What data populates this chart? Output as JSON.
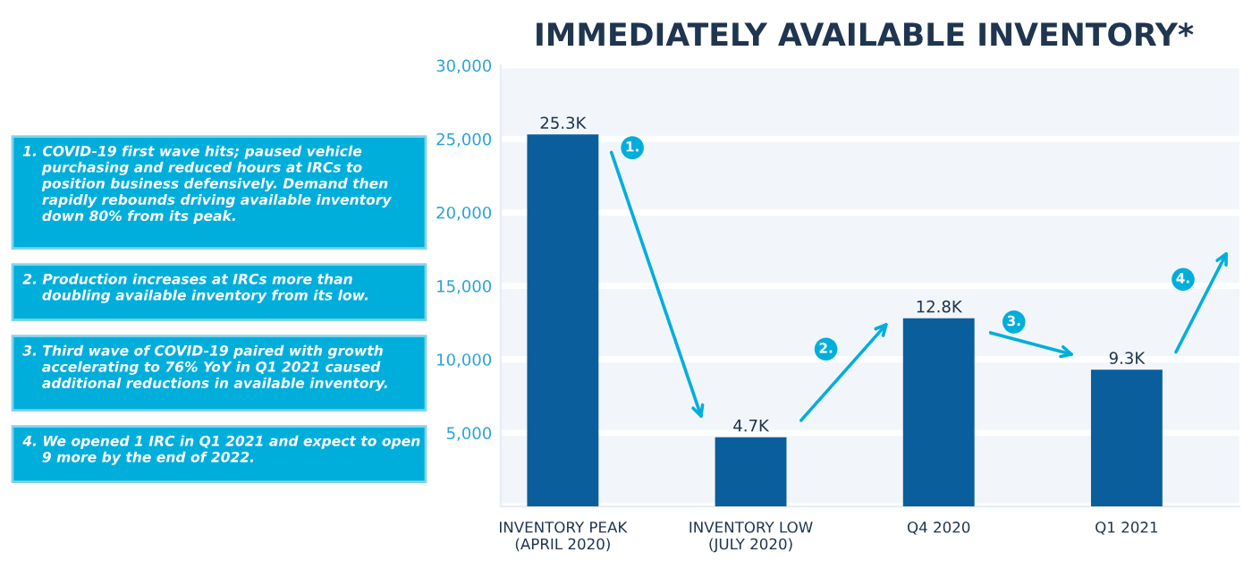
{
  "chart_data": {
    "type": "bar",
    "title": "IMMEDIATELY AVAILABLE INVENTORY*",
    "categories": [
      "INVENTORY PEAK\n(APRIL 2020)",
      "INVENTORY LOW\n(JULY 2020)",
      "Q4 2020",
      "Q1 2021"
    ],
    "values": [
      25300,
      4700,
      12800,
      9300
    ],
    "value_labels": [
      "25.3K",
      "4.7K",
      "12.8K",
      "9.3K"
    ],
    "color": "#0b5e9c",
    "ylim": [
      0,
      30000
    ],
    "yticks": [
      {
        "value": 0,
        "label": null
      },
      {
        "value": 5000,
        "label": "5,000"
      },
      {
        "value": 10000,
        "label": "10,000"
      },
      {
        "value": 15000,
        "label": "15,000"
      },
      {
        "value": 20000,
        "label": "20,000"
      },
      {
        "value": 25000,
        "label": "25,000"
      },
      {
        "value": 30000,
        "label": "30,000"
      }
    ],
    "grid": "y",
    "annotations": [
      "1. COVID-19 first wave hits; paused vehicle\n    purchasing and reduced hours at IRCs to\n    position business defensively. Demand then\n    rapidly rebounds driving available inventory\n    down 80% from its peak.",
      "2. Production increases at IRCs more than\n    doubling available inventory from its low.",
      "3. Third wave of COVID-19 paired with growth\n    accelerating to 76% YoY in Q1 2021 caused\n    additional reductions in available inventory.",
      "4. We opened 1 IRC in Q1 2021 and expect to open\n    9 more by the end of 2022.",
      "1.",
      "2.",
      "3.",
      "4."
    ]
  }
}
